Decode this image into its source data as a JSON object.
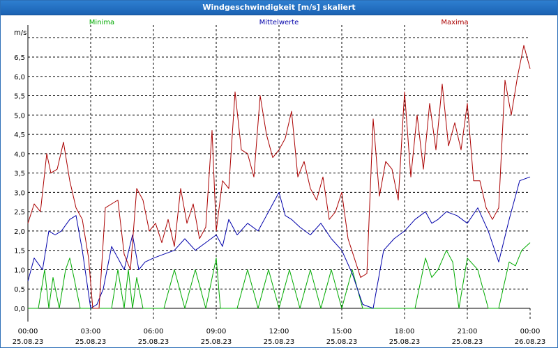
{
  "window": {
    "title": "Windgeschwindigkeit [m/s] skaliert"
  },
  "chart_data": {
    "type": "line",
    "title": "Windgeschwindigkeit [m/s] skaliert",
    "ylabel": "m/s",
    "ylim": [
      0,
      7.0
    ],
    "xlim": [
      0,
      24
    ],
    "grid": true,
    "y_ticks": [
      0.0,
      0.5,
      1.0,
      1.5,
      2.0,
      2.5,
      3.0,
      3.5,
      4.0,
      4.5,
      5.0,
      5.5,
      6.0,
      6.5
    ],
    "y_tick_labels": [
      "0,0",
      "0,5",
      "1,0",
      "1,5",
      "2,0",
      "2,5",
      "3,0",
      "3,5",
      "4,0",
      "4,5",
      "5,0",
      "5,5",
      "6,0",
      "6,5"
    ],
    "x_ticks": [
      {
        "x": 0,
        "time": "00:00",
        "date": "25.08.23"
      },
      {
        "x": 3,
        "time": "03:00",
        "date": "25.08.23"
      },
      {
        "x": 6,
        "time": "06:00",
        "date": "25.08.23"
      },
      {
        "x": 9,
        "time": "09:00",
        "date": "25.08.23"
      },
      {
        "x": 12,
        "time": "12:00",
        "date": "25.08.23"
      },
      {
        "x": 15,
        "time": "15:00",
        "date": "25.08.23"
      },
      {
        "x": 18,
        "time": "18:00",
        "date": "25.08.23"
      },
      {
        "x": 21,
        "time": "21:00",
        "date": "25.08.23"
      },
      {
        "x": 24,
        "time": "00:00",
        "date": "26.08.23"
      }
    ],
    "legend": [
      {
        "name": "Minima",
        "color": "#00aa00"
      },
      {
        "name": "Mittelwerte",
        "color": "#0000aa"
      },
      {
        "name": "Maxima",
        "color": "#aa0000"
      }
    ],
    "series": [
      {
        "name": "Minima",
        "color": "#00aa00",
        "x": [
          0,
          0.5,
          0.8,
          1,
          1.2,
          1.5,
          1.8,
          2,
          2.2,
          2.5,
          2.8,
          3,
          4,
          4.3,
          4.6,
          4.8,
          5,
          5.2,
          5.5,
          6,
          6.5,
          7,
          7.5,
          8,
          8.5,
          9,
          9.2,
          9.5,
          10,
          10.5,
          11,
          11.5,
          12,
          12.5,
          13,
          13.5,
          14,
          14.5,
          15,
          15.5,
          16,
          16.5,
          17,
          17.5,
          18,
          18.5,
          19,
          19.3,
          19.6,
          20,
          20.3,
          20.6,
          21,
          21.5,
          22,
          22.5,
          23,
          23.3,
          23.6,
          24
        ],
        "values": [
          0,
          0,
          1,
          0,
          0.8,
          0,
          1,
          1.3,
          0.8,
          0,
          0,
          0,
          0,
          1,
          0,
          1,
          0,
          0.8,
          0,
          0,
          0,
          1,
          0,
          1,
          0,
          1.3,
          0,
          0,
          0,
          1,
          0,
          1,
          0,
          1,
          0,
          1,
          0,
          1,
          0,
          1,
          0,
          0,
          0,
          0,
          0,
          0,
          1.3,
          0.8,
          1,
          1.5,
          1.2,
          0,
          1.3,
          1,
          0,
          0,
          1.2,
          1.1,
          1.5,
          1.7
        ]
      },
      {
        "name": "Mittelwerte",
        "color": "#0000aa",
        "x": [
          0,
          0.3,
          0.7,
          1,
          1.3,
          1.6,
          2,
          2.3,
          2.6,
          3,
          3.3,
          3.6,
          4,
          4.3,
          4.6,
          5,
          5.3,
          5.6,
          6,
          6.5,
          7,
          7.5,
          8,
          8.5,
          9,
          9.3,
          9.6,
          10,
          10.5,
          11,
          11.5,
          12,
          12.3,
          12.6,
          13,
          13.5,
          14,
          14.5,
          15,
          15.5,
          16,
          16.5,
          17,
          17.5,
          18,
          18.5,
          19,
          19.3,
          19.6,
          20,
          20.5,
          21,
          21.5,
          22,
          22.5,
          23,
          23.5,
          24
        ],
        "values": [
          0.7,
          1.3,
          1,
          2,
          1.9,
          2,
          2.3,
          2.4,
          1.5,
          0,
          0.1,
          0.5,
          1.6,
          1.3,
          1,
          1.9,
          1,
          1.2,
          1.3,
          1.4,
          1.5,
          1.8,
          1.5,
          1.7,
          1.9,
          1.6,
          2.3,
          1.9,
          2.2,
          2,
          2.5,
          3,
          2.4,
          2.3,
          2.1,
          1.9,
          2.2,
          1.8,
          1.5,
          0.9,
          0.1,
          0,
          1.5,
          1.8,
          2,
          2.3,
          2.5,
          2.2,
          2.3,
          2.5,
          2.4,
          2.2,
          2.6,
          2.0,
          1.2,
          2.3,
          3.3,
          3.4
        ]
      },
      {
        "name": "Maxima",
        "color": "#aa0000",
        "x": [
          0,
          0.3,
          0.6,
          0.9,
          1.1,
          1.4,
          1.7,
          2,
          2.3,
          2.6,
          2.9,
          3.1,
          3.4,
          3.7,
          4,
          4.3,
          4.6,
          4.9,
          5.2,
          5.5,
          5.8,
          6.1,
          6.4,
          6.7,
          7,
          7.3,
          7.6,
          7.9,
          8.2,
          8.5,
          8.8,
          9,
          9.3,
          9.6,
          9.9,
          10.2,
          10.5,
          10.8,
          11.1,
          11.4,
          11.7,
          12,
          12.3,
          12.6,
          12.9,
          13.2,
          13.5,
          13.8,
          14.1,
          14.4,
          14.7,
          15,
          15.3,
          15.6,
          15.9,
          16.2,
          16.5,
          16.8,
          17.1,
          17.4,
          17.7,
          18,
          18.3,
          18.6,
          18.9,
          19.2,
          19.5,
          19.8,
          20.1,
          20.4,
          20.7,
          21,
          21.3,
          21.6,
          21.9,
          22.2,
          22.5,
          22.8,
          23.1,
          23.4,
          23.7,
          24
        ],
        "values": [
          2.2,
          2.7,
          2.5,
          4,
          3.5,
          3.6,
          4.3,
          3.3,
          2.6,
          2.3,
          1.3,
          0,
          0,
          2.6,
          2.7,
          2.8,
          1.4,
          1,
          3.1,
          2.8,
          2,
          2.2,
          1.7,
          2.3,
          1.6,
          3.1,
          2.2,
          2.7,
          1.8,
          2.1,
          4.6,
          2.0,
          3.3,
          3.1,
          5.6,
          4.1,
          4.0,
          3.4,
          5.5,
          4.5,
          3.9,
          4.1,
          4.4,
          5.1,
          3.4,
          3.8,
          3.1,
          2.8,
          3.4,
          2.3,
          2.5,
          3.0,
          1.8,
          1.3,
          0.8,
          0.9,
          4.9,
          2.9,
          3.8,
          3.6,
          2.8,
          5.6,
          3.4,
          5.0,
          3.6,
          5.3,
          4.1,
          5.8,
          4.2,
          4.8,
          4.1,
          5.3,
          3.3,
          3.3,
          2.6,
          2.3,
          2.6,
          5.9,
          5.0,
          6.0,
          6.8,
          6.2
        ]
      }
    ]
  }
}
